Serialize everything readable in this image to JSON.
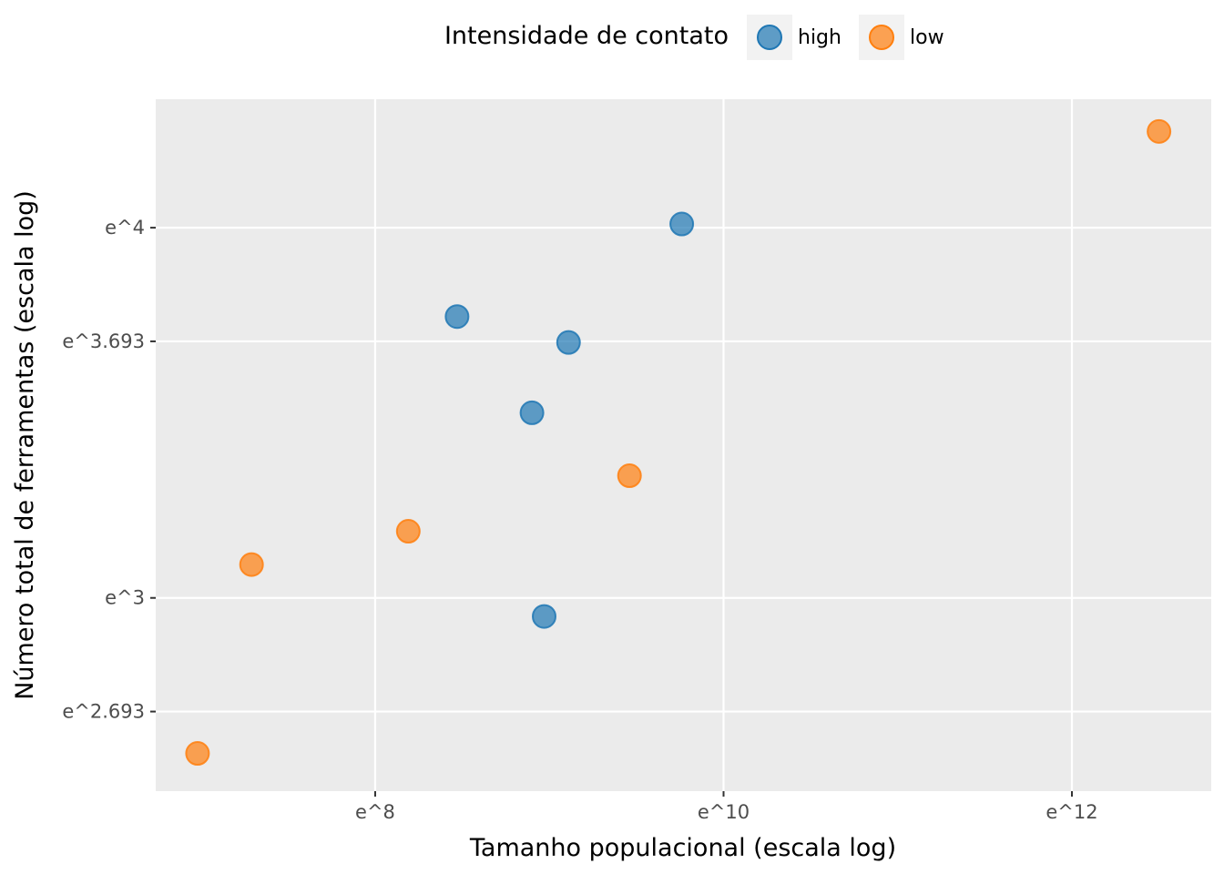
{
  "chart_data": {
    "type": "scatter",
    "title": "",
    "xlabel": "Tamanho populacional (escala log)",
    "ylabel": "Número total de ferramentas (escala log)",
    "x_scale": "log",
    "y_scale": "log",
    "xlim_log": [
      6.74,
      12.8
    ],
    "ylim_log": [
      2.478,
      4.347
    ],
    "x_ticks": [
      {
        "value": 8,
        "label": "e^8"
      },
      {
        "value": 10,
        "label": "e^10"
      },
      {
        "value": 12,
        "label": "e^12"
      }
    ],
    "y_ticks": [
      {
        "value": 2.693,
        "label": "e^2.693"
      },
      {
        "value": 3,
        "label": "e^3"
      },
      {
        "value": 3.693,
        "label": "e^3.693"
      },
      {
        "value": 4,
        "label": "e^4"
      }
    ],
    "grid": true,
    "legend": {
      "title": "Intensidade de contato",
      "position": "top"
    },
    "series": [
      {
        "name": "high",
        "color": "#1f77b4",
        "points": [
          {
            "logx": 8.47,
            "logy": 3.76
          },
          {
            "logx": 8.9,
            "logy": 3.5
          },
          {
            "logx": 9.11,
            "logy": 3.69
          },
          {
            "logx": 9.76,
            "logy": 4.01
          },
          {
            "logx": 8.97,
            "logy": 2.95
          }
        ]
      },
      {
        "name": "low",
        "color": "#ff7f0e",
        "points": [
          {
            "logx": 6.98,
            "logy": 2.58
          },
          {
            "logx": 7.29,
            "logy": 3.09
          },
          {
            "logx": 8.19,
            "logy": 3.18
          },
          {
            "logx": 9.46,
            "logy": 3.33
          },
          {
            "logx": 12.5,
            "logy": 4.26
          }
        ]
      }
    ]
  }
}
